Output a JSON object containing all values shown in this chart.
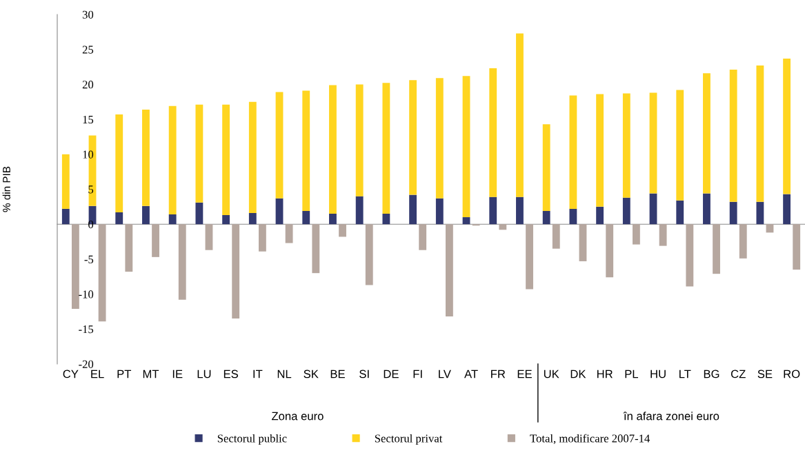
{
  "chart_data": {
    "type": "bar",
    "stacked": true,
    "ylabel": "% din PIB",
    "categories": [
      "CY",
      "EL",
      "PT",
      "MT",
      "IE",
      "LU",
      "ES",
      "IT",
      "NL",
      "SK",
      "BE",
      "SI",
      "DE",
      "FI",
      "LV",
      "AT",
      "FR",
      "EE",
      "UK",
      "DK",
      "HR",
      "PL",
      "HU",
      "LT",
      "BG",
      "CZ",
      "SE",
      "RO"
    ],
    "series": [
      {
        "name": "Sectorul public",
        "color": "#333a70",
        "values": [
          2.2,
          2.6,
          1.7,
          2.6,
          1.4,
          3.1,
          1.3,
          1.6,
          3.7,
          1.9,
          1.5,
          4.0,
          1.5,
          4.2,
          3.7,
          1.0,
          3.9,
          3.9,
          1.9,
          2.2,
          2.5,
          3.8,
          4.4,
          3.4,
          4.4,
          3.2,
          3.2,
          4.3
        ]
      },
      {
        "name": "Sectorul privat",
        "color": "#ffd520",
        "values": [
          7.8,
          10.1,
          14.0,
          13.8,
          15.5,
          14.0,
          15.8,
          15.9,
          15.2,
          17.2,
          18.4,
          16.0,
          18.7,
          16.4,
          17.2,
          20.2,
          18.4,
          23.4,
          12.4,
          16.2,
          16.1,
          14.9,
          14.4,
          15.8,
          17.2,
          18.9,
          19.5,
          19.4
        ]
      },
      {
        "name": "Total, modificare 2007-14",
        "color": "#b6a79f",
        "values": [
          -12.1,
          -13.9,
          -6.8,
          -4.7,
          -10.8,
          -3.7,
          -13.5,
          -3.9,
          -2.7,
          -7.0,
          -1.8,
          -8.7,
          0,
          -3.7,
          -13.2,
          -0.2,
          -0.8,
          -9.3,
          -3.5,
          -5.3,
          -7.6,
          -2.9,
          -3.1,
          -8.9,
          -7.1,
          -4.9,
          -1.2,
          -6.5
        ]
      }
    ],
    "ylim": [
      -20,
      30
    ],
    "yticks": [
      -20,
      -15,
      -10,
      -5,
      0,
      5,
      10,
      15,
      20,
      25,
      30
    ],
    "legend": "bottom",
    "annotations": [
      "Zona euro",
      "în afara zonei euro"
    ]
  }
}
